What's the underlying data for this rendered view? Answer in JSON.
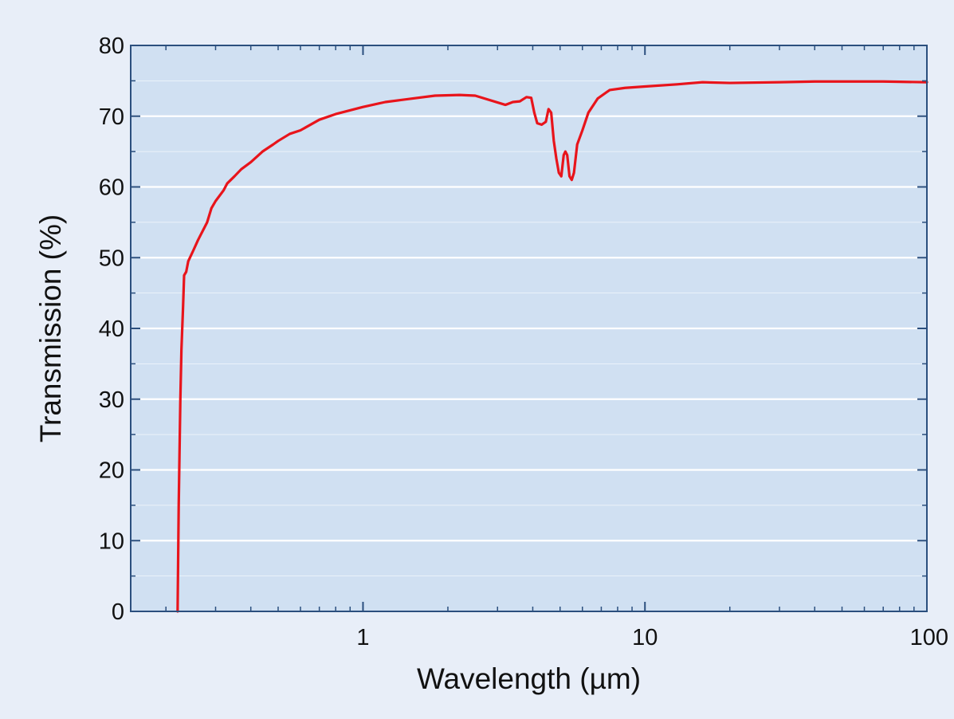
{
  "chart_data": {
    "type": "line",
    "title": "",
    "xlabel": "Wavelength (µm)",
    "ylabel": "Transmission (%)",
    "x_scale": "log",
    "xlim": [
      0.15,
      100
    ],
    "ylim": [
      0,
      80
    ],
    "x_ticks": [
      1,
      10,
      100
    ],
    "x_tick_labels": [
      "1",
      "10",
      "100"
    ],
    "y_ticks": [
      0,
      10,
      20,
      30,
      40,
      50,
      60,
      70,
      80
    ],
    "y_tick_labels": [
      "0",
      "10",
      "20",
      "30",
      "40",
      "50",
      "60",
      "70",
      "80"
    ],
    "grid": "horizontal",
    "legend": "none",
    "colors": {
      "page_background": "#e8eef8",
      "plot_background": "#d0e0f2",
      "axis": "#2b4f7e",
      "grid": "#ffffff",
      "line": "#e8141b"
    },
    "series": [
      {
        "color": "#e8141b",
        "points": [
          [
            0.22,
            0
          ],
          [
            0.222,
            15
          ],
          [
            0.225,
            30
          ],
          [
            0.227,
            37
          ],
          [
            0.23,
            43
          ],
          [
            0.232,
            47.5
          ],
          [
            0.236,
            48
          ],
          [
            0.24,
            49.5
          ],
          [
            0.25,
            51
          ],
          [
            0.26,
            52.5
          ],
          [
            0.28,
            55
          ],
          [
            0.29,
            57
          ],
          [
            0.3,
            58
          ],
          [
            0.32,
            59.5
          ],
          [
            0.33,
            60.5
          ],
          [
            0.35,
            61.5
          ],
          [
            0.37,
            62.5
          ],
          [
            0.4,
            63.5
          ],
          [
            0.44,
            65
          ],
          [
            0.48,
            66
          ],
          [
            0.5,
            66.5
          ],
          [
            0.55,
            67.5
          ],
          [
            0.6,
            68
          ],
          [
            0.7,
            69.5
          ],
          [
            0.8,
            70.3
          ],
          [
            1.0,
            71.3
          ],
          [
            1.2,
            72
          ],
          [
            1.5,
            72.5
          ],
          [
            1.8,
            72.9
          ],
          [
            2.2,
            73
          ],
          [
            2.5,
            72.9
          ],
          [
            3.2,
            71.6
          ],
          [
            3.4,
            72
          ],
          [
            3.6,
            72.1
          ],
          [
            3.8,
            72.7
          ],
          [
            3.95,
            72.6
          ],
          [
            4.05,
            70.5
          ],
          [
            4.15,
            69
          ],
          [
            4.3,
            68.8
          ],
          [
            4.45,
            69.2
          ],
          [
            4.55,
            71
          ],
          [
            4.65,
            70.5
          ],
          [
            4.75,
            66.5
          ],
          [
            4.85,
            64
          ],
          [
            4.95,
            62
          ],
          [
            5.05,
            61.5
          ],
          [
            5.15,
            64.5
          ],
          [
            5.22,
            65
          ],
          [
            5.3,
            64.5
          ],
          [
            5.4,
            61.5
          ],
          [
            5.5,
            61
          ],
          [
            5.6,
            62
          ],
          [
            5.75,
            66
          ],
          [
            6.0,
            68
          ],
          [
            6.3,
            70.5
          ],
          [
            6.8,
            72.5
          ],
          [
            7.5,
            73.7
          ],
          [
            8.5,
            74
          ],
          [
            10,
            74.2
          ],
          [
            13,
            74.5
          ],
          [
            16,
            74.8
          ],
          [
            20,
            74.7
          ],
          [
            30,
            74.8
          ],
          [
            40,
            74.9
          ],
          [
            50,
            74.9
          ],
          [
            70,
            74.9
          ],
          [
            100,
            74.8
          ]
        ]
      }
    ]
  }
}
